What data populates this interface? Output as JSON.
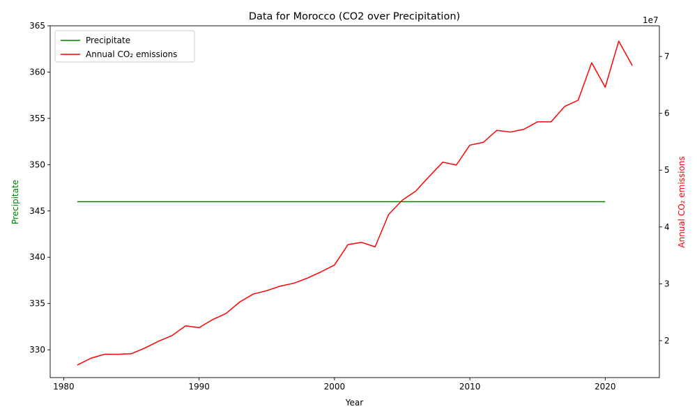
{
  "chart_data": {
    "type": "line",
    "title": "Data for Morocco (CO2 over Precipitation)",
    "xlabel": "Year",
    "ylabel_left": "Precipitate",
    "ylabel_right": "Annual CO₂ emissions",
    "right_axis_offset_text": "1e7",
    "xlim": [
      1979,
      2024
    ],
    "ylim_left": [
      327,
      365
    ],
    "ylim_right": [
      13500000,
      75400000
    ],
    "x_ticks": [
      1980,
      1990,
      2000,
      2010,
      2020
    ],
    "y_left_ticks": [
      330,
      335,
      340,
      345,
      350,
      355,
      360,
      365
    ],
    "y_right_ticks": [
      20000000,
      30000000,
      40000000,
      50000000,
      60000000,
      70000000
    ],
    "y_right_tick_labels": [
      "2",
      "3",
      "4",
      "5",
      "6",
      "7"
    ],
    "grid": false,
    "legend_position": "upper-left",
    "series": [
      {
        "name": "Precipitate",
        "axis": "left",
        "color": "#008000",
        "x": [
          1981,
          1982,
          1983,
          1984,
          1985,
          1986,
          1987,
          1988,
          1989,
          1990,
          1991,
          1992,
          1993,
          1994,
          1995,
          1996,
          1997,
          1998,
          1999,
          2000,
          2001,
          2002,
          2003,
          2004,
          2005,
          2006,
          2007,
          2008,
          2009,
          2010,
          2011,
          2012,
          2013,
          2014,
          2015,
          2016,
          2017,
          2018,
          2019,
          2020
        ],
        "y": [
          346,
          346,
          346,
          346,
          346,
          346,
          346,
          346,
          346,
          346,
          346,
          346,
          346,
          346,
          346,
          346,
          346,
          346,
          346,
          346,
          346,
          346,
          346,
          346,
          346,
          346,
          346,
          346,
          346,
          346,
          346,
          346,
          346,
          346,
          346,
          346,
          346,
          346,
          346,
          346
        ]
      },
      {
        "name": "Annual CO₂ emissions",
        "axis": "right",
        "color": "#ff0000",
        "x": [
          1981,
          1982,
          1983,
          1984,
          1985,
          1986,
          1987,
          1988,
          1989,
          1990,
          1991,
          1992,
          1993,
          1994,
          1995,
          1996,
          1997,
          1998,
          1999,
          2000,
          2001,
          2002,
          2003,
          2004,
          2005,
          2006,
          2007,
          2008,
          2009,
          2010,
          2011,
          2012,
          2013,
          2014,
          2015,
          2016,
          2017,
          2018,
          2019,
          2020,
          2021,
          2022
        ],
        "y": [
          15700000,
          16900000,
          17600000,
          17600000,
          17700000,
          18700000,
          19900000,
          20900000,
          22600000,
          22300000,
          23700000,
          24800000,
          26800000,
          28200000,
          28800000,
          29600000,
          30100000,
          31000000,
          32100000,
          33300000,
          36900000,
          37300000,
          36500000,
          42200000,
          44700000,
          46300000,
          48900000,
          51400000,
          50900000,
          54400000,
          54900000,
          57000000,
          56700000,
          57200000,
          58500000,
          58500000,
          61200000,
          62300000,
          68900000,
          64600000,
          72700000,
          68400000
        ]
      }
    ]
  }
}
